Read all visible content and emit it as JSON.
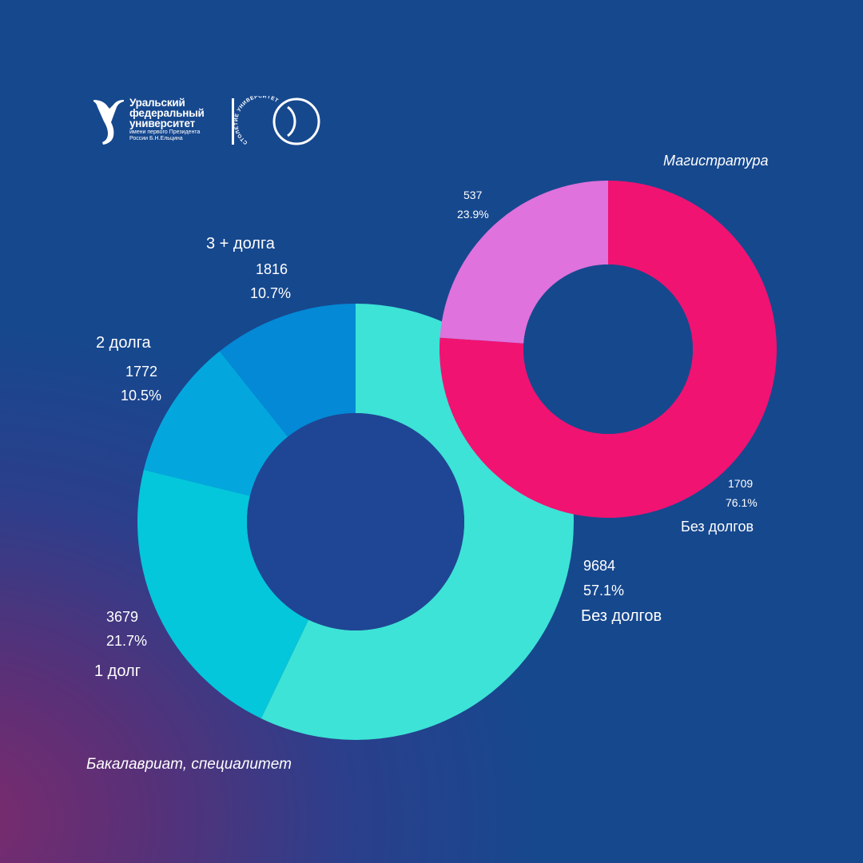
{
  "logo": {
    "name_lines": [
      "Уральский",
      "федеральный",
      "университет"
    ],
    "sub_lines": [
      "имени первого Президента",
      "России Б.Н.Ельцина"
    ],
    "anniversary_arc_text": "СТОЛЕТИЕ УНИВЕРСИТЕТА",
    "anniversary_number": "100"
  },
  "chart_data": [
    {
      "type": "pie",
      "title": "Бакалавриат, специалитет",
      "segments": [
        {
          "label": "Без долгов",
          "value": 9684,
          "percent": "57.1%",
          "color": "#3de3d6"
        },
        {
          "label": "1 долг",
          "value": 3679,
          "percent": "21.7%",
          "color": "#04c7dc"
        },
        {
          "label": "2 долга",
          "value": 1772,
          "percent": "10.5%",
          "color": "#03a7de"
        },
        {
          "label": "3 + долга",
          "value": 1816,
          "percent": "10.7%",
          "color": "#0389d6"
        }
      ]
    },
    {
      "type": "pie",
      "title": "Магистратура",
      "segments": [
        {
          "label": "Без долгов",
          "value": 1709,
          "percent": "76.1%",
          "color": "#f01372"
        },
        {
          "label": "",
          "value": 537,
          "percent": "23.9%",
          "color": "#df72dc"
        }
      ]
    }
  ]
}
